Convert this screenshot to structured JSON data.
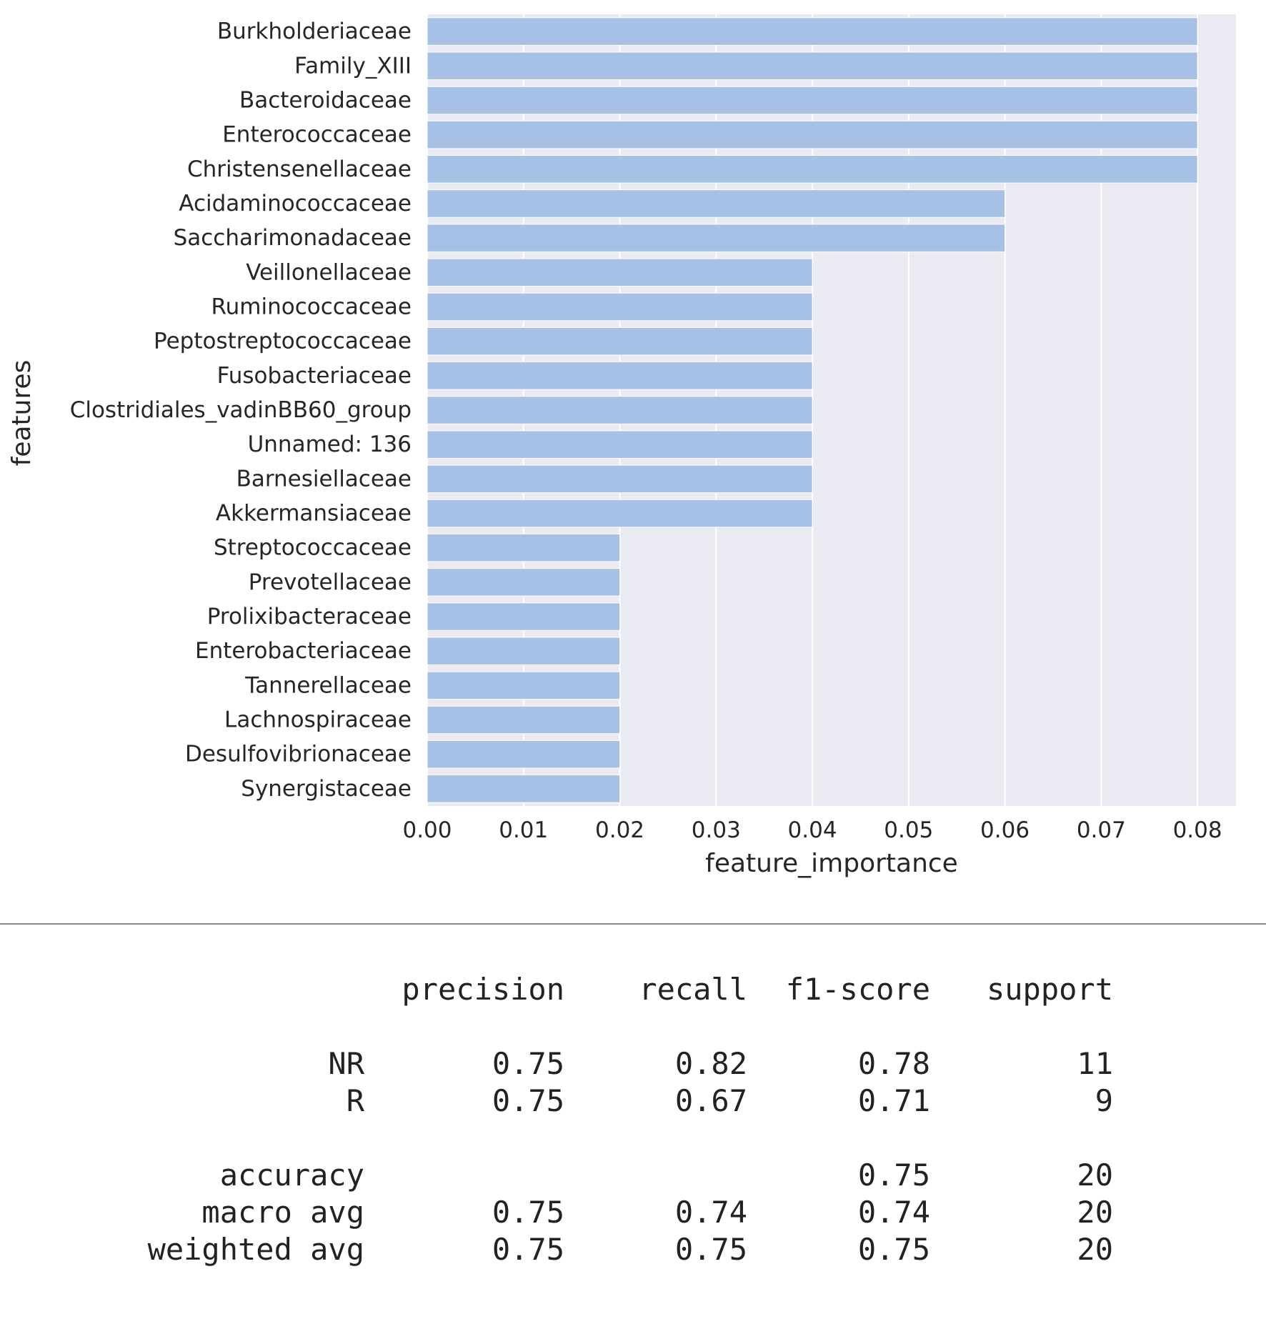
{
  "chart_data": {
    "type": "bar",
    "orientation": "horizontal",
    "categories": [
      "Burkholderiaceae",
      "Family_XIII",
      "Bacteroidaceae",
      "Enterococcaceae",
      "Christensenellaceae",
      "Acidaminococcaceae",
      "Saccharimonadaceae",
      "Veillonellaceae",
      "Ruminococcaceae",
      "Peptostreptococcaceae",
      "Fusobacteriaceae",
      "Clostridiales_vadinBB60_group",
      "Unnamed: 136",
      "Barnesiellaceae",
      "Akkermansiaceae",
      "Streptococcaceae",
      "Prevotellaceae",
      "Prolixibacteraceae",
      "Enterobacteriaceae",
      "Tannerellaceae",
      "Lachnospiraceae",
      "Desulfovibrionaceae",
      "Synergistaceae"
    ],
    "values": [
      0.08,
      0.08,
      0.08,
      0.08,
      0.08,
      0.06,
      0.06,
      0.04,
      0.04,
      0.04,
      0.04,
      0.04,
      0.04,
      0.04,
      0.04,
      0.02,
      0.02,
      0.02,
      0.02,
      0.02,
      0.02,
      0.02,
      0.02
    ],
    "xlabel": "feature_importance",
    "ylabel": "features",
    "xlim": [
      0.0,
      0.084
    ],
    "xticks": [
      "0.00",
      "0.01",
      "0.02",
      "0.03",
      "0.04",
      "0.05",
      "0.06",
      "0.07",
      "0.08"
    ],
    "grid": true,
    "colors": {
      "bar": "#a7c0e6",
      "background": "#eaeaf2",
      "grid": "#ffffff"
    }
  },
  "report": {
    "headers": [
      "precision",
      "recall",
      "f1-score",
      "support"
    ],
    "rows": [
      {
        "label": "NR",
        "precision": "0.75",
        "recall": "0.82",
        "f1": "0.78",
        "support": "11"
      },
      {
        "label": "R",
        "precision": "0.75",
        "recall": "0.67",
        "f1": "0.71",
        "support": "9"
      },
      {
        "label": "accuracy",
        "precision": "",
        "recall": "",
        "f1": "0.75",
        "support": "20"
      },
      {
        "label": "macro avg",
        "precision": "0.75",
        "recall": "0.74",
        "f1": "0.74",
        "support": "20"
      },
      {
        "label": "weighted avg",
        "precision": "0.75",
        "recall": "0.75",
        "f1": "0.75",
        "support": "20"
      }
    ]
  }
}
